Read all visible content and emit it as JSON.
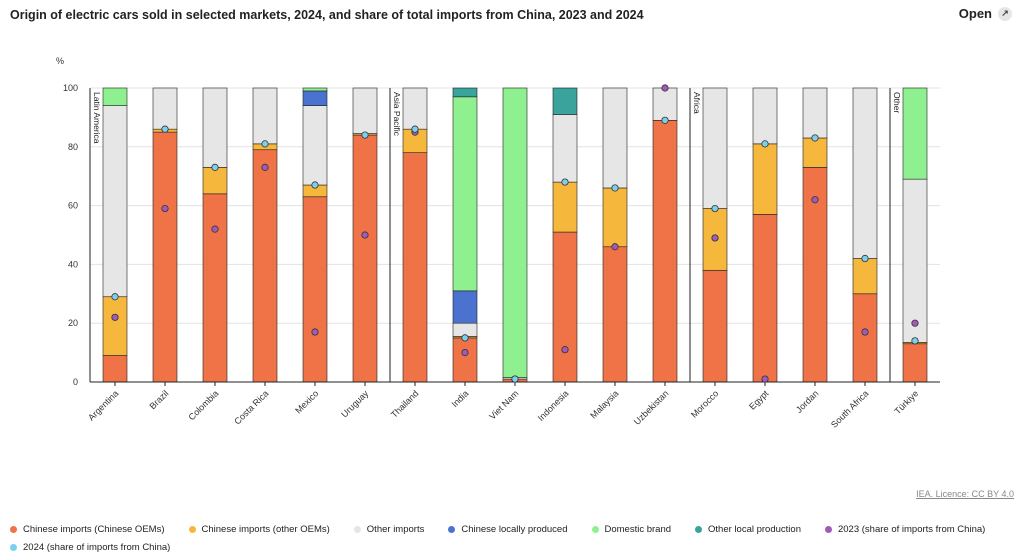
{
  "header": {
    "title": "Origin of electric cars sold in selected markets, 2024, and share of total imports from China, 2023 and 2024",
    "open_label": "Open"
  },
  "footer": {
    "licence": "IEA. Licence: CC BY 4.0"
  },
  "colors": {
    "cn_oem": "#f07348",
    "other_oem": "#f5b73c",
    "other_imports": "#e6e6e6",
    "cn_local": "#4c72d0",
    "domestic": "#8ff08f",
    "other_local": "#3aa39c",
    "y2023": "#a05bb7",
    "y2024": "#7dcfee"
  },
  "legend": [
    {
      "key": "cn_oem",
      "label": "Chinese imports (Chinese OEMs)"
    },
    {
      "key": "other_oem",
      "label": "Chinese imports (other OEMs)"
    },
    {
      "key": "other_imports",
      "label": "Other imports"
    },
    {
      "key": "cn_local",
      "label": "Chinese locally produced"
    },
    {
      "key": "domestic",
      "label": "Domestic brand"
    },
    {
      "key": "other_local",
      "label": "Other local production"
    },
    {
      "key": "y2023",
      "label": "2023 (share of imports from China)"
    },
    {
      "key": "y2024",
      "label": "2024 (share of imports from China)"
    }
  ],
  "chart_data": {
    "type": "bar",
    "stacked": true,
    "ylabel": "%",
    "ylim": [
      0,
      100
    ],
    "yticks": [
      0,
      20,
      40,
      60,
      80,
      100
    ],
    "groups": [
      {
        "label": "Latin America",
        "start": 0
      },
      {
        "label": "Asia Pacific",
        "start": 6
      },
      {
        "label": "Africa",
        "start": 12
      },
      {
        "label": "Other",
        "start": 16
      }
    ],
    "categories": [
      "Argentina",
      "Brazil",
      "Colombia",
      "Costa Rica",
      "Mexico",
      "Uruguay",
      "Thailand",
      "India",
      "Viet Nam",
      "Indonesia",
      "Malaysia",
      "Uzbekistan",
      "Morocco",
      "Egypt",
      "Jordan",
      "South Africa",
      "Türkiye"
    ],
    "series": [
      {
        "key": "cn_oem",
        "name": "Chinese imports (Chinese OEMs)",
        "values": [
          9,
          85,
          64,
          79,
          63,
          84,
          78,
          15,
          1,
          51,
          46,
          89,
          38,
          57,
          73,
          30,
          13
        ]
      },
      {
        "key": "other_oem",
        "name": "Chinese imports (other OEMs)",
        "values": [
          20,
          1,
          9,
          2,
          4,
          0.5,
          8,
          0.5,
          0,
          17,
          20,
          0,
          21,
          24,
          10,
          12,
          0.5
        ]
      },
      {
        "key": "other_imports",
        "name": "Other imports",
        "values": [
          65,
          14,
          27,
          19,
          27,
          15.5,
          14,
          4.5,
          0.5,
          23,
          34,
          11,
          41,
          19,
          17,
          58,
          55.5
        ]
      },
      {
        "key": "cn_local",
        "name": "Chinese locally produced",
        "values": [
          0,
          0,
          0,
          0,
          5,
          0,
          0,
          11,
          0,
          0,
          0,
          0,
          0,
          0,
          0,
          0,
          0
        ]
      },
      {
        "key": "domestic",
        "name": "Domestic brand",
        "values": [
          6,
          0,
          0,
          0,
          1,
          0,
          0,
          66,
          98.5,
          0,
          0,
          0,
          0,
          0,
          0,
          0,
          31
        ]
      },
      {
        "key": "other_local",
        "name": "Other local production",
        "values": [
          0,
          0,
          0,
          0,
          0,
          0,
          0,
          3,
          0,
          9,
          0,
          0,
          0,
          0,
          0,
          0,
          0
        ]
      }
    ],
    "points": [
      {
        "key": "y2023",
        "name": "2023 (share of imports from China)",
        "values": [
          22,
          59,
          52,
          73,
          17,
          50,
          85,
          10,
          1,
          11,
          46,
          100,
          49,
          1,
          62,
          17,
          20
        ]
      },
      {
        "key": "y2024",
        "name": "2024 (share of imports from China)",
        "values": [
          29,
          86,
          73,
          81,
          67,
          84,
          86,
          15,
          1,
          68,
          66,
          89,
          59,
          81,
          83,
          42,
          14
        ]
      }
    ]
  }
}
